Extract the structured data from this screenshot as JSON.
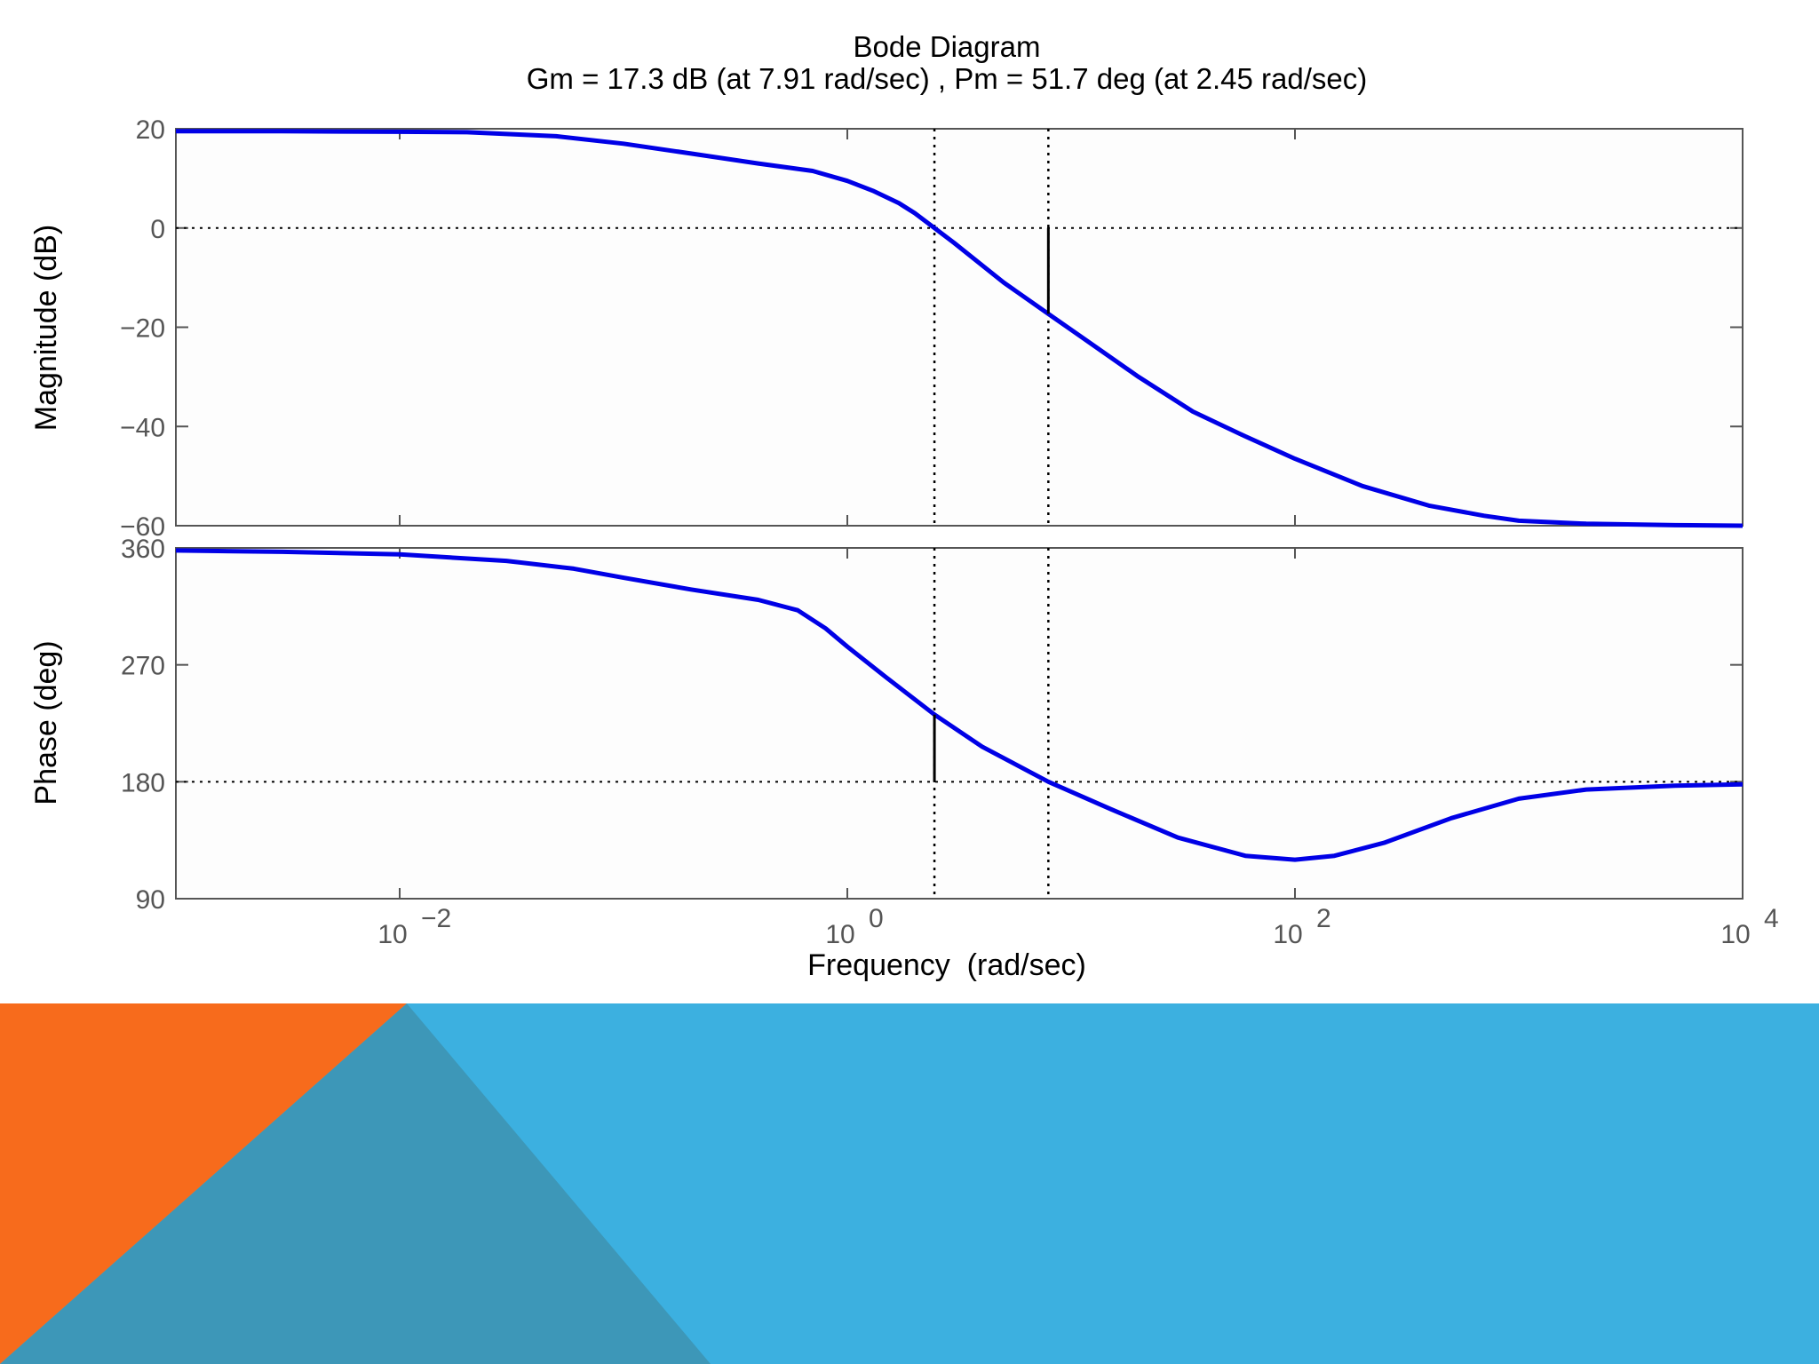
{
  "chart_data": [
    {
      "type": "line",
      "title": "Bode Diagram",
      "subtitle": "Gm = 17.3 dB (at 7.91 rad/sec) ,  Pm = 51.7 deg (at 2.45 rad/sec)",
      "xlabel": "",
      "ylabel": "Magnitude (dB)",
      "xscale": "log",
      "xlim": [
        0.001,
        10000
      ],
      "ylim": [
        -60,
        20
      ],
      "yticks": [
        20,
        0,
        -20,
        -40,
        -60
      ],
      "ytick_labels": [
        "20",
        "0",
        "−20",
        "−40",
        "−60"
      ],
      "grid": false,
      "reference_line": {
        "y": 0
      },
      "margin_marker": {
        "x": 7.91,
        "y_from": 0,
        "y_to": -17.3
      },
      "crossover_frequencies": [
        2.45,
        7.91
      ],
      "series": [
        {
          "color": "#0000e6",
          "x": [
            0.001,
            0.003,
            0.01,
            0.02,
            0.05,
            0.1,
            0.2,
            0.4,
            0.7,
            1.0,
            1.3,
            1.7,
            2.0,
            2.45,
            3.0,
            4.0,
            5.0,
            7.91,
            12,
            20,
            35,
            60,
            100,
            200,
            400,
            700,
            1000,
            2000,
            5000,
            10000
          ],
          "y": [
            19.5,
            19.5,
            19.4,
            19.3,
            18.5,
            17,
            15,
            13,
            11.5,
            9.5,
            7.5,
            5,
            3,
            0,
            -3,
            -7.5,
            -11,
            -17.3,
            -23,
            -30,
            -37,
            -42,
            -46.5,
            -52,
            -56,
            -58,
            -59,
            -59.6,
            -59.9,
            -60
          ]
        }
      ]
    },
    {
      "type": "line",
      "title": "",
      "xlabel": "Frequency  (rad/sec)",
      "ylabel": "Phase (deg)",
      "xscale": "log",
      "xlim": [
        0.001,
        10000
      ],
      "ylim": [
        90,
        360
      ],
      "yticks": [
        360,
        270,
        180,
        90
      ],
      "ytick_labels": [
        "360",
        "270",
        "180",
        "90"
      ],
      "xticks": [
        0.01,
        1,
        100,
        10000
      ],
      "xtick_labels": [
        {
          "base": "10",
          "exp": "−2"
        },
        {
          "base": "10",
          "exp": "0"
        },
        {
          "base": "10",
          "exp": "2"
        },
        {
          "base": "10",
          "exp": "4"
        }
      ],
      "grid": false,
      "reference_line": {
        "y": 180
      },
      "margin_marker": {
        "x": 2.45,
        "y_from": 180,
        "y_to": 231.7
      },
      "crossover_frequencies": [
        2.45,
        7.91
      ],
      "series": [
        {
          "color": "#0000e6",
          "x": [
            0.001,
            0.003,
            0.01,
            0.03,
            0.06,
            0.1,
            0.2,
            0.4,
            0.6,
            0.8,
            1.0,
            1.5,
            2.45,
            4.0,
            7.91,
            15,
            30,
            60,
            100,
            150,
            250,
            500,
            1000,
            2000,
            5000,
            10000
          ],
          "y": [
            358,
            357,
            355,
            350,
            344,
            337,
            328,
            320,
            312,
            298,
            284,
            260,
            231.7,
            207,
            180,
            159,
            137,
            123,
            120,
            123,
            133,
            152,
            167,
            174,
            177,
            178
          ]
        }
      ]
    }
  ],
  "colors": {
    "curve": "#0000e6",
    "banner_blue": "#3cb0e0",
    "banner_orange": "#f76b1c",
    "banner_teal": "#3d97b8"
  }
}
